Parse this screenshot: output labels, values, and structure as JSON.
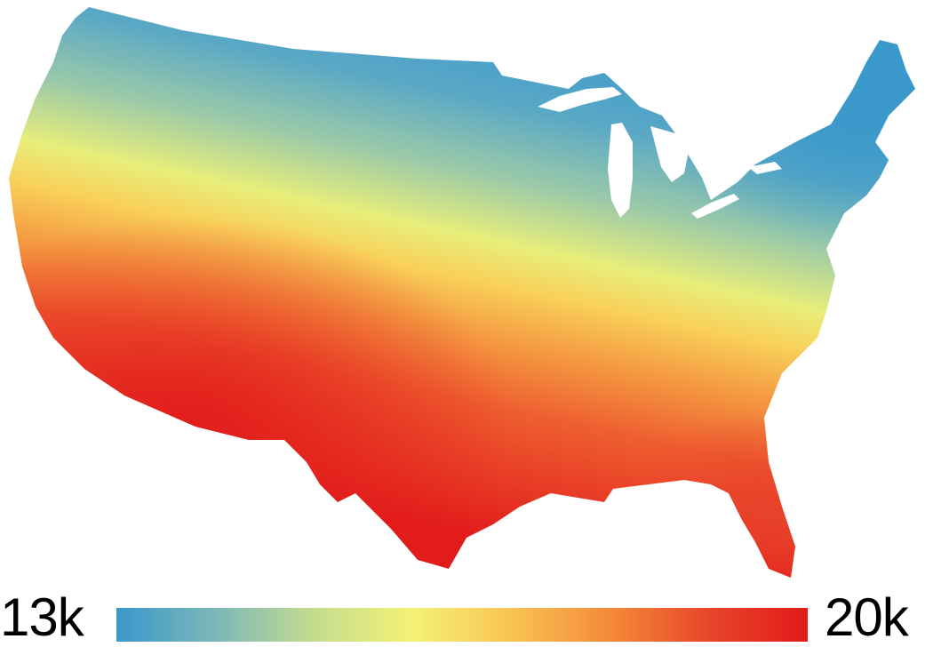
{
  "legend": {
    "min_label": "13k",
    "max_label": "20k",
    "min_value": 13000,
    "max_value": 20000,
    "colors": [
      "#3a98cb",
      "#7cb7b8",
      "#c4dc8e",
      "#f4f276",
      "#f8c352",
      "#f48a3a",
      "#e8452a",
      "#e21b1b"
    ]
  },
  "map": {
    "region": "contiguous-united-states",
    "low_color": "#3a98cb",
    "high_color": "#e21b1b",
    "background": "#ffffff"
  }
}
